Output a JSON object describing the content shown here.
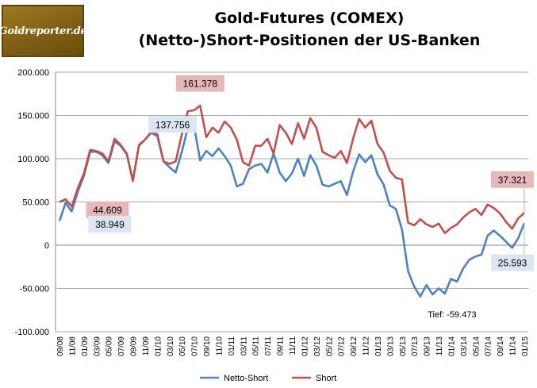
{
  "logo_text": "Goldreporter.de",
  "chart_data": {
    "type": "line",
    "title": "Gold-Futures (COMEX)",
    "subtitle": "(Netto-)Short-Positionen  der US-Banken",
    "ylim": [
      -100000,
      200000
    ],
    "y_ticks": [
      "-100.000",
      "-50.000",
      "0",
      "50.000",
      "100.000",
      "150.000",
      "200.000"
    ],
    "x_tick_labels": [
      "09/08",
      "11/08",
      "01/09",
      "03/09",
      "05/09",
      "07/09",
      "09/09",
      "11/09",
      "01/10",
      "03/10",
      "05/10",
      "07/10",
      "09/10",
      "11/10",
      "01/11",
      "03/11",
      "05/11",
      "07/11",
      "09/11",
      "11/11",
      "01/12",
      "03/12",
      "05/12",
      "07/12",
      "09/12",
      "11/12",
      "01/13",
      "03/13",
      "05/13",
      "07/13",
      "09/13",
      "11/13",
      "01/14",
      "03/14",
      "05/14",
      "07/14",
      "09/14",
      "11/14",
      "01/15"
    ],
    "grid": true,
    "legend": "bottom",
    "colors": {
      "netto": "#4f81bd",
      "short": "#c0504d"
    },
    "series": [
      {
        "name": "Netto-Short",
        "values": [
          28000,
          49000,
          38949,
          62000,
          80000,
          108000,
          108000,
          104000,
          95000,
          120000,
          115000,
          105000,
          75000,
          115000,
          122000,
          130000,
          126000,
          97000,
          90000,
          84000,
          108000,
          136000,
          137756,
          98000,
          109000,
          103000,
          112000,
          103000,
          92000,
          68000,
          71000,
          88000,
          92000,
          94000,
          84000,
          106000,
          84000,
          74000,
          83000,
          100000,
          80000,
          104000,
          92000,
          70000,
          68000,
          71000,
          74000,
          58000,
          85000,
          105000,
          96000,
          104000,
          82000,
          70000,
          46000,
          42000,
          18000,
          -30000,
          -48000,
          -59473,
          -46000,
          -57000,
          -50000,
          -56000,
          -39000,
          -42000,
          -27000,
          -17000,
          -13000,
          -11000,
          11000,
          17000,
          11000,
          4000,
          -3000,
          8000,
          25593
        ]
      },
      {
        "name": "Short",
        "values": [
          50000,
          53000,
          44609,
          66000,
          83000,
          110000,
          109000,
          106000,
          97000,
          123000,
          116000,
          106000,
          74000,
          116000,
          122000,
          131000,
          128000,
          97000,
          94000,
          97000,
          128000,
          155000,
          156000,
          161378,
          125000,
          136000,
          130000,
          143000,
          136000,
          122000,
          96000,
          92000,
          115000,
          115000,
          123000,
          106000,
          139000,
          130000,
          117000,
          141000,
          123000,
          147000,
          136000,
          108000,
          104000,
          101000,
          109000,
          95000,
          123000,
          146000,
          136000,
          144000,
          117000,
          107000,
          86000,
          78000,
          76000,
          26000,
          23000,
          30000,
          24000,
          21000,
          25000,
          14000,
          20000,
          24000,
          32000,
          38000,
          42000,
          35000,
          47000,
          43000,
          37000,
          27000,
          19000,
          31000,
          37321
        ]
      }
    ],
    "annotations": [
      {
        "text": "161.378",
        "series": "Short",
        "index": 23,
        "style": "red"
      },
      {
        "text": "137.756",
        "series": "Netto-Short",
        "index": 22,
        "style": "blue"
      },
      {
        "text": "44.609",
        "series": "Short",
        "index": 2,
        "style": "red"
      },
      {
        "text": "38.949",
        "series": "Netto-Short",
        "index": 2,
        "style": "blue"
      },
      {
        "text": "37.321",
        "series": "Short",
        "index": 76,
        "style": "red"
      },
      {
        "text": "25.593",
        "series": "Netto-Short",
        "index": 76,
        "style": "blue"
      },
      {
        "text": "Tief: -59.473",
        "series": "Netto-Short",
        "index": 59,
        "style": "plain"
      }
    ]
  }
}
